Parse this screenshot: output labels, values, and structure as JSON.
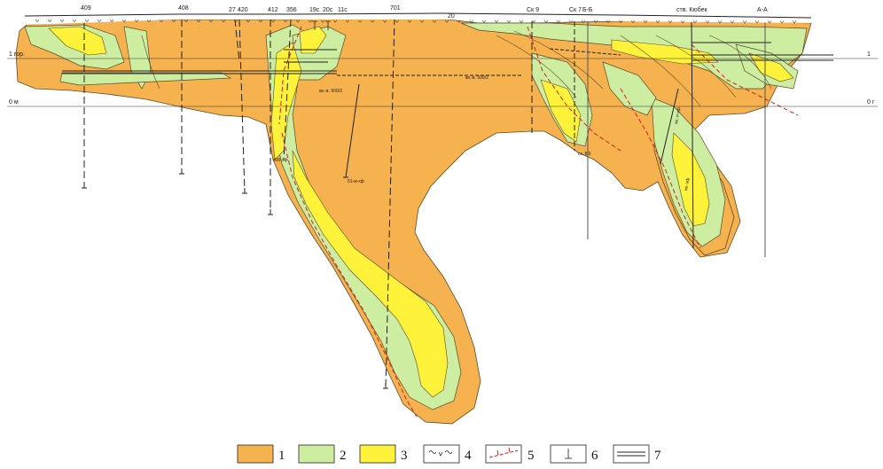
{
  "colors": {
    "zone1": "#f5b24f",
    "zone2": "#cdeea0",
    "zone3": "#fff23a",
    "fault": "#d42020",
    "outline": "#5a4a2a"
  },
  "wells": [
    {
      "label": "409"
    },
    {
      "label": "408"
    },
    {
      "label": "27"
    },
    {
      "label": "420"
    },
    {
      "label": "412"
    },
    {
      "label": "356"
    },
    {
      "label": "19с"
    },
    {
      "label": "20с"
    },
    {
      "label": "11с"
    },
    {
      "label": "701"
    },
    {
      "label": "20"
    },
    {
      "label": "Ск 9"
    },
    {
      "label": "Ск 7"
    },
    {
      "label": "Б-Б"
    },
    {
      "label": "ств. Кюбек"
    },
    {
      "label": "А-А"
    }
  ],
  "levels": {
    "hor1_left": "1 гор.",
    "hor1_right": "1",
    "zero_left": "0 м",
    "zero_right": "0 г"
  },
  "annotations": {
    "a1": "кв.-в. 500/3",
    "a2": "кв.-в. 500/2",
    "a3": "400-хф",
    "a4": "51-м-хф",
    "a5": "ск. 8/3",
    "a6": "кв.-п-хф",
    "a7": "кв.-хф"
  },
  "legend": [
    {
      "number": "1",
      "symbol": "fill-zone1"
    },
    {
      "number": "2",
      "symbol": "fill-zone2"
    },
    {
      "number": "3",
      "symbol": "fill-zone3"
    },
    {
      "number": "4",
      "symbol": "weathering"
    },
    {
      "number": "5",
      "symbol": "fault"
    },
    {
      "number": "6",
      "symbol": "well"
    },
    {
      "number": "7",
      "symbol": "workings"
    }
  ]
}
